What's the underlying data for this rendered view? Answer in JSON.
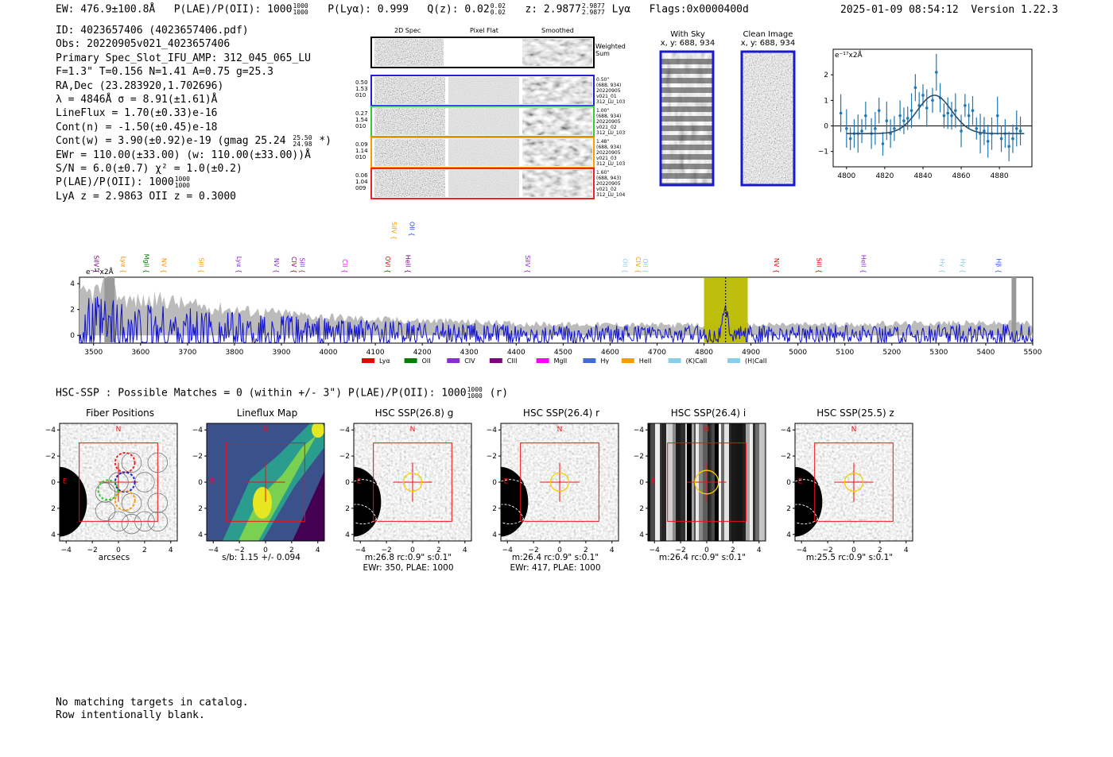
{
  "header": {
    "ew": "EW: 476.9±100.8Å",
    "plae_label": "P(LAE)/P(OII): 1000",
    "plae_hi": "1000",
    "plae_lo": "1000",
    "plya": "P(Lyα): 0.999",
    "qz_label": "Q(z): 0.02",
    "qz_hi": "0.02",
    "qz_lo": "0.02",
    "z_label": "z: 2.9877",
    "z_hi": "2.9877",
    "z_lo": "2.9877",
    "line": "Lyα",
    "flags": "Flags:0x0000400d",
    "datetime": "2025-01-09 08:54:12",
    "version": "Version 1.22.3"
  },
  "info": {
    "id": "ID: 4023657406 (4023657406.pdf)",
    "obs": "Obs: 20220905v021_4023657406",
    "primary": "Primary Spec_Slot_IFU_AMP: 312_045_065_LU",
    "fparams": "F=1.3\"  T=0.156  N=1.41  A=0.75  g=25.3",
    "radec": "RA,Dec (23.283920,1.702696)",
    "lambda": "λ = 4846Å  σ = 8.91(±1.61)Å",
    "lineflux": "LineFlux = 1.70(±0.33)e-16",
    "contn": "Cont(n) = -1.50(±0.45)e-18",
    "contw": "Cont(w) = 3.90(±0.92)e-19 (gmag 25.24",
    "gmag_hi": "25.50",
    "gmag_lo": "24.98",
    "contw_end": "*)",
    "ewr": "EWr = 110.00(±33.00) (w: 110.00(±33.00))Å",
    "sn": "S/N = 6.0(±0.7)  χ² = 1.0(±0.2)",
    "plae": "P(LAE)/P(OII): 1000",
    "plae_hi": "1000",
    "plae_lo": "1000",
    "lya_z": "LyA z = 2.9863  OII z = 0.3000"
  },
  "cutouts": {
    "col1": "2D Spec",
    "col2": "Pixel Flat",
    "col3": "Smoothed",
    "weighted": "Weighted\nSum",
    "rows": [
      {
        "left": "0.50\n1.53\n010",
        "right": "0.50\"\n(688, 934)\n20220905\nv021_01\n312_LU_103",
        "color": "#2222cc"
      },
      {
        "left": "0.27\n1.54\n010",
        "right": "1.00\"\n(688, 934)\n20220905\nv021_02\n312_LU_103",
        "color": "#33cc33"
      },
      {
        "left": "0.09\n1.14\n010",
        "right": "1.48\"\n(688, 934)\n20220905\nv021_03\n312_LU_103",
        "color": "#ff9900"
      },
      {
        "left": "0.06\n1.04\n009",
        "right": "1.60\"\n(688, 943)\n20220905\nv021_02\n312_LU_104",
        "color": "#ee2222"
      }
    ]
  },
  "sky": {
    "title": "With Sky",
    "coords": "x, y: 688, 934"
  },
  "clean": {
    "title": "Clean Image",
    "coords": "x, y: 688, 934"
  },
  "fitplot": {
    "unit": "e⁻¹⁷x2Å",
    "yticks": [
      "2",
      "1",
      "0",
      "−1"
    ],
    "xticks": [
      "4800",
      "4820",
      "4840",
      "4860",
      "4880"
    ]
  },
  "spectrum": {
    "unit": "e⁻¹⁷x2Å",
    "yticks": [
      "4",
      "2",
      "0"
    ],
    "xticks": [
      "3500",
      "3600",
      "3700",
      "3800",
      "3900",
      "4000",
      "4100",
      "4200",
      "4300",
      "4400",
      "4500",
      "4600",
      "4700",
      "4800",
      "4900",
      "5000",
      "5100",
      "5200",
      "5300",
      "5400",
      "5500"
    ],
    "line_labels": [
      {
        "text": "SiIV",
        "wl": 3496,
        "color": "#800080"
      },
      {
        "text": "Lyα",
        "wl": 3554,
        "color": "#ff8c00"
      },
      {
        "text": "MgII",
        "wl": 3603,
        "color": "#008000"
      },
      {
        "text": "NV",
        "wl": 3640,
        "color": "#ff8c00"
      },
      {
        "text": "SiII",
        "wl": 3720,
        "color": "#ff9900"
      },
      {
        "text": "Lyα",
        "wl": 3800,
        "color": "#8a2be2"
      },
      {
        "text": "NV",
        "wl": 3880,
        "color": "#8a2be2"
      },
      {
        "text": "CIV",
        "wl": 3917,
        "color": "#800080"
      },
      {
        "text": "SiII",
        "wl": 3935,
        "color": "#8a2be2"
      },
      {
        "text": "CII",
        "wl": 4025,
        "color": "#ff00ff"
      },
      {
        "text": "OVI",
        "wl": 4117,
        "color": "#ee0000"
      },
      {
        "text": "HeII",
        "wl": 4160,
        "color": "#800080"
      },
      {
        "text": "SiIV",
        "wl": 4415,
        "color": "#8a2be2"
      },
      {
        "text": "OII",
        "wl": 4622,
        "color": "#87ceeb"
      },
      {
        "text": "CIV",
        "wl": 4650,
        "color": "#ff9900"
      },
      {
        "text": "OII",
        "wl": 4665,
        "color": "#87ceeb"
      },
      {
        "text": "NV",
        "wl": 4945,
        "color": "#ee0000"
      },
      {
        "text": "SiII",
        "wl": 5035,
        "color": "#ee0000"
      },
      {
        "text": "HeII",
        "wl": 5130,
        "color": "#8a2be2"
      },
      {
        "text": "Hγ",
        "wl": 5298,
        "color": "#87ceeb"
      },
      {
        "text": "Hγ",
        "wl": 5342,
        "color": "#87ceeb"
      },
      {
        "text": "Hβ",
        "wl": 5418,
        "color": "#4169e1"
      }
    ],
    "upper_labels": [
      {
        "text": "SiIV",
        "wl": 4130,
        "color": "#ff9900"
      },
      {
        "text": "OII",
        "wl": 4168,
        "color": "#2244cc"
      }
    ],
    "legend": [
      {
        "text": "Lyα",
        "color": "#ee0000"
      },
      {
        "text": "OII",
        "color": "#008000"
      },
      {
        "text": "CIV",
        "color": "#8a2be2"
      },
      {
        "text": "CIII",
        "color": "#800080"
      },
      {
        "text": "MgII",
        "color": "#ff00ff"
      },
      {
        "text": "Hγ",
        "color": "#4169e1"
      },
      {
        "text": "HeII",
        "color": "#ff9900"
      },
      {
        "text": "(K)CaII",
        "color": "#87ceeb"
      },
      {
        "text": "(H)CaII",
        "color": "#87ceeb"
      }
    ]
  },
  "hsc": {
    "title_line": "HSC-SSP : Possible Matches = 0 (within +/- 3\")  P(LAE)/P(OII): 1000",
    "frac_hi": "1000",
    "frac_lo": "1000",
    "band": "(r)",
    "panels": [
      {
        "title": "Fiber Positions",
        "cap1": "arcsecs",
        "cap2": ""
      },
      {
        "title": "Lineflux Map",
        "cap1": "s/b: 1.15 +/- 0.094",
        "cap2": ""
      },
      {
        "title": "HSC SSP(26.8) g",
        "cap1": "m:26.8 rc:0.9\"  s:0.1\"",
        "cap2": "EWr: 350, PLAE: 1000"
      },
      {
        "title": "HSC SSP(26.4) r",
        "cap1": "m:26.4 rc:0.9\"  s:0.1\"",
        "cap2": "EWr: 417, PLAE: 1000"
      },
      {
        "title": "HSC SSP(26.4) i",
        "cap1": "m:26.4 rc:0.9\"  s:0.1\"",
        "cap2": ""
      },
      {
        "title": "HSC SSP(25.5) z",
        "cap1": "m:25.5 rc:0.9\"  s:0.1\"",
        "cap2": ""
      }
    ],
    "axis_ticks": [
      "−4",
      "−2",
      "0",
      "2",
      "4"
    ],
    "north": "N",
    "east": "E"
  },
  "footer": {
    "line1": "No matching targets in catalog.",
    "line2": "Row intentionally blank."
  },
  "chart_data": [
    {
      "type": "scatter",
      "title": "",
      "ylabel": "e⁻¹⁷x2Å",
      "xlim": [
        4793,
        4897
      ],
      "ylim": [
        -1.6,
        3.0
      ],
      "x": [
        4797,
        4800,
        4802,
        4804,
        4806,
        4808,
        4810,
        4813,
        4815,
        4817,
        4819,
        4821,
        4823,
        4825,
        4828,
        4830,
        4832,
        4834,
        4836,
        4838,
        4840,
        4842,
        4845,
        4847,
        4849,
        4851,
        4853,
        4855,
        4857,
        4860,
        4862,
        4864,
        4866,
        4868,
        4870,
        4872,
        4874,
        4876,
        4879,
        4881,
        4883,
        4885,
        4887,
        4889,
        4891
      ],
      "y": [
        0.5,
        -0.1,
        -0.5,
        -0.3,
        -0.3,
        -0.2,
        0.4,
        -0.3,
        -0.1,
        0.6,
        -0.7,
        0.2,
        -0.3,
        -0.1,
        0.4,
        0.2,
        0.3,
        0.6,
        1.5,
        0.8,
        1.2,
        0.7,
        1.0,
        2.1,
        1.1,
        0.4,
        0.5,
        0.4,
        0.6,
        -0.2,
        0.8,
        0.4,
        0.6,
        -0.1,
        -0.3,
        -0.2,
        -0.6,
        -0.3,
        0.4,
        -0.5,
        -0.3,
        -0.8,
        -0.5,
        -0.1,
        -0.2
      ],
      "yerr": 0.6,
      "fit": {
        "center": 4846,
        "sigma": 8.91,
        "amplitude": 1.5,
        "continuum": -0.3
      }
    },
    {
      "type": "line",
      "title": "",
      "xlabel": "",
      "ylabel": "e⁻¹⁷x2Å",
      "xlim": [
        3470,
        5500
      ],
      "ylim": [
        -0.6,
        4.5
      ],
      "x_range": [
        3470,
        5500
      ],
      "highlight_band": [
        4800,
        4893
      ],
      "emission_line": 4846,
      "masked_edges": [
        [
          3523,
          3545
        ],
        [
          5455,
          5465
        ]
      ],
      "series": [
        {
          "name": "noise envelope",
          "color": "#bbbbbb",
          "anchors_x": [
            3470,
            3530,
            3570,
            3600,
            3650,
            3700,
            3800,
            3900,
            4000,
            4100,
            4200,
            4300,
            4400,
            4500,
            4600,
            4700,
            4800,
            4900,
            5000,
            5100,
            5200,
            5300,
            5400,
            5500
          ],
          "anchors_y": [
            3.2,
            3.9,
            2.9,
            2.8,
            2.9,
            2.5,
            2.1,
            1.8,
            1.5,
            1.3,
            1.2,
            1.1,
            0.95,
            0.9,
            0.9,
            0.85,
            0.85,
            0.85,
            0.9,
            0.9,
            0.95,
            1.0,
            1.0,
            1.0
          ]
        },
        {
          "name": "flux",
          "color": "#1111cc",
          "description": "noisy spectrum around 0 with emission peak at 4846 Å (~1.7)"
        }
      ]
    }
  ]
}
